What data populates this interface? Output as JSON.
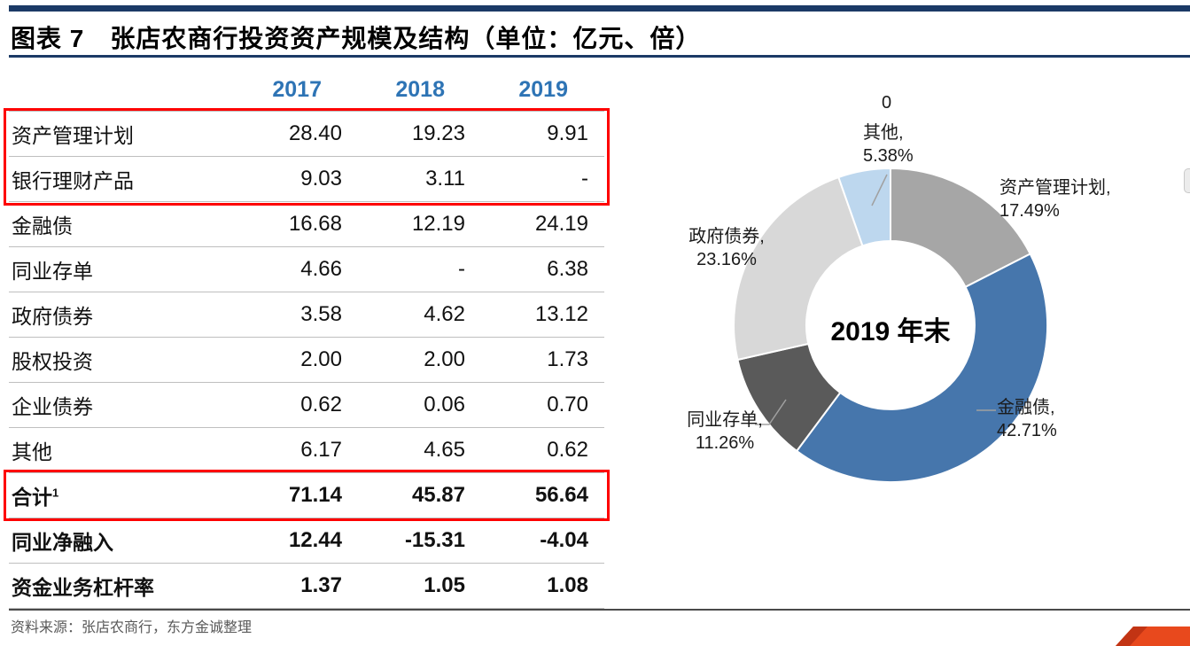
{
  "figure": {
    "title": "图表 7　张店农商行投资资产规模及结构（单位：亿元、倍）",
    "source": "资料来源：张店农商行，东方金诚整理"
  },
  "colors": {
    "accent_rule": "#1B3A66",
    "year_header_blue": "#2E74B5",
    "highlight_box_red": "#FE0000",
    "row_border_gray": "#BFBFBF",
    "source_text_gray": "#595959"
  },
  "chart_data": [
    {
      "type": "table",
      "headers": [
        "2017",
        "2018",
        "2019"
      ],
      "rows": [
        {
          "label": "资产管理计划",
          "values": [
            "28.40",
            "19.23",
            "9.91"
          ]
        },
        {
          "label": "银行理财产品",
          "values": [
            "9.03",
            "3.11",
            "-"
          ]
        },
        {
          "label": "金融债",
          "values": [
            "16.68",
            "12.19",
            "24.19"
          ]
        },
        {
          "label": "同业存单",
          "values": [
            "4.66",
            "-",
            "6.38"
          ]
        },
        {
          "label": "政府债券",
          "values": [
            "3.58",
            "4.62",
            "13.12"
          ]
        },
        {
          "label": "股权投资",
          "values": [
            "2.00",
            "2.00",
            "1.73"
          ]
        },
        {
          "label": "企业债券",
          "values": [
            "0.62",
            "0.06",
            "0.70"
          ]
        },
        {
          "label": "其他",
          "values": [
            "6.17",
            "4.65",
            "0.62"
          ]
        },
        {
          "label": "合计",
          "sup": "1",
          "values": [
            "71.14",
            "45.87",
            "56.64"
          ]
        },
        {
          "label": "同业净融入",
          "values": [
            "12.44",
            "-15.31",
            "-4.04"
          ]
        },
        {
          "label": "资金业务杠杆率",
          "values": [
            "1.37",
            "1.05",
            "1.08"
          ]
        }
      ],
      "red_highlight_row_groups": [
        [
          0,
          1
        ],
        [
          8
        ]
      ],
      "bold_rows": [
        8,
        9,
        10
      ]
    },
    {
      "type": "pie",
      "subtype": "donut",
      "center_label": "2019 年末",
      "unit": "%",
      "start_angle_deg": -90,
      "direction": "clockwise",
      "zero_label": "0",
      "slices": [
        {
          "label": "资产管理计划",
          "value": 17.49,
          "color": "#A6A6A6"
        },
        {
          "label": "银行理财产品",
          "value": 0,
          "color": "#ED7D31"
        },
        {
          "label": "金融债",
          "value": 42.71,
          "color": "#4676AC"
        },
        {
          "label": "同业存单",
          "value": 11.26,
          "color": "#5A5A5A"
        },
        {
          "label": "政府债券",
          "value": 23.16,
          "color": "#D8D8D8"
        },
        {
          "label": "其他",
          "value": 5.38,
          "color": "#BDD7EE"
        }
      ]
    }
  ]
}
